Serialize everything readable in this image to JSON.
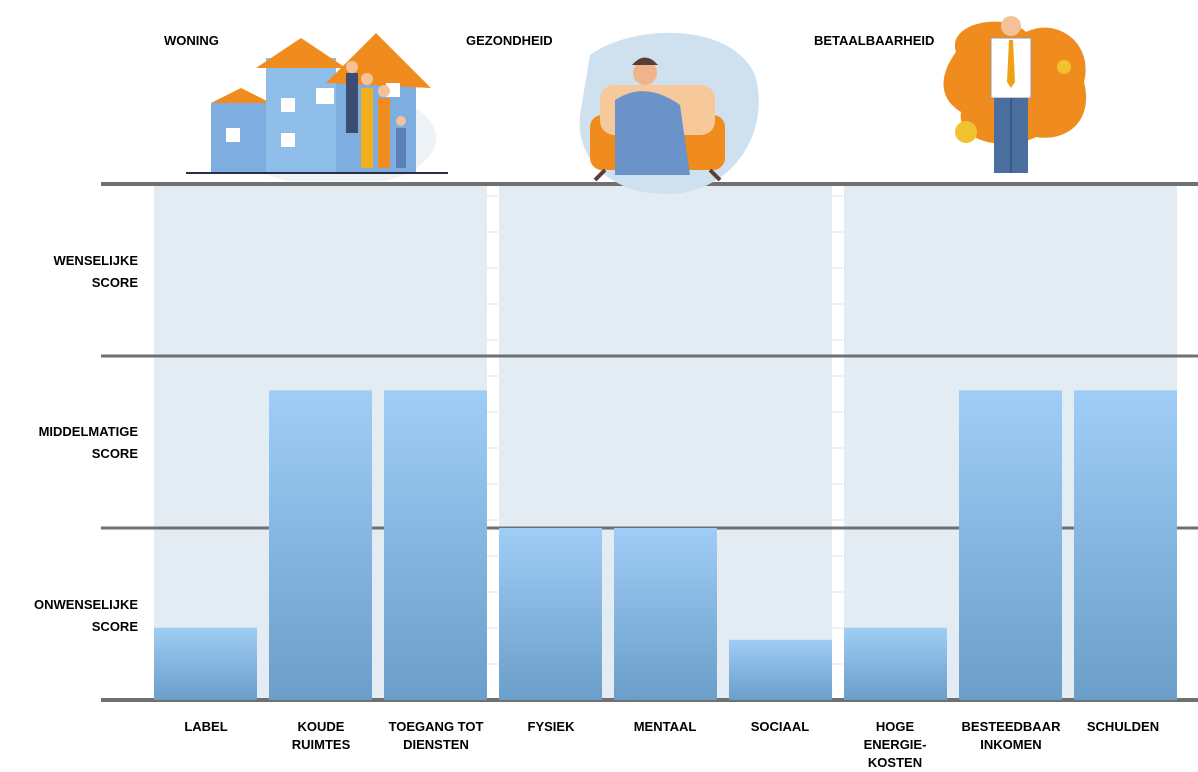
{
  "chart_data": {
    "type": "bar",
    "groups": [
      {
        "title": "WONING",
        "categories": [
          "LABEL",
          "KOUDE RUIMTES",
          "TOEGANG TOT DIENSTEN"
        ],
        "values": [
          0.42,
          1.8,
          1.8
        ]
      },
      {
        "title": "GEZONDHEID",
        "categories": [
          "FYSIEK",
          "MENTAAL",
          "SOCIAAL"
        ],
        "values": [
          1.0,
          1.0,
          0.35
        ]
      },
      {
        "title": "BETAALBAARHEID",
        "categories": [
          "HOGE ENERGIE-KOSTEN",
          "BESTEEDBAAR INKOMEN",
          "SCHULDEN"
        ],
        "values": [
          0.42,
          1.8,
          1.8
        ]
      }
    ],
    "y_bands": [
      "ONWENSELIJKE SCORE",
      "MIDDELMATIGE SCORE",
      "WENSELIJKE SCORE"
    ],
    "ylim": [
      0,
      3
    ],
    "bar_color_top": "#9fcdf6",
    "bar_color_bottom": "#6b9ec9",
    "panel_color": "#e3ebf3",
    "grid_color": "#707070"
  },
  "y_labels": {
    "top": [
      "WENSELIJKE",
      "SCORE"
    ],
    "middle": [
      "MIDDELMATIGE",
      "SCORE"
    ],
    "bottom": [
      "ONWENSELIJKE",
      "SCORE"
    ]
  },
  "category_labels": [
    [
      "LABEL"
    ],
    [
      "KOUDE",
      "RUIMTES"
    ],
    [
      "TOEGANG TOT",
      "DIENSTEN"
    ],
    [
      "FYSIEK"
    ],
    [
      "MENTAAL"
    ],
    [
      "SOCIAAL"
    ],
    [
      "HOGE",
      "ENERGIE-",
      "KOSTEN"
    ],
    [
      "BESTEEDBAAR",
      "INKOMEN"
    ],
    [
      "SCHULDEN"
    ]
  ],
  "illustrations": [
    "house-family-icon",
    "sick-person-couch-icon",
    "broke-businessman-icon"
  ]
}
